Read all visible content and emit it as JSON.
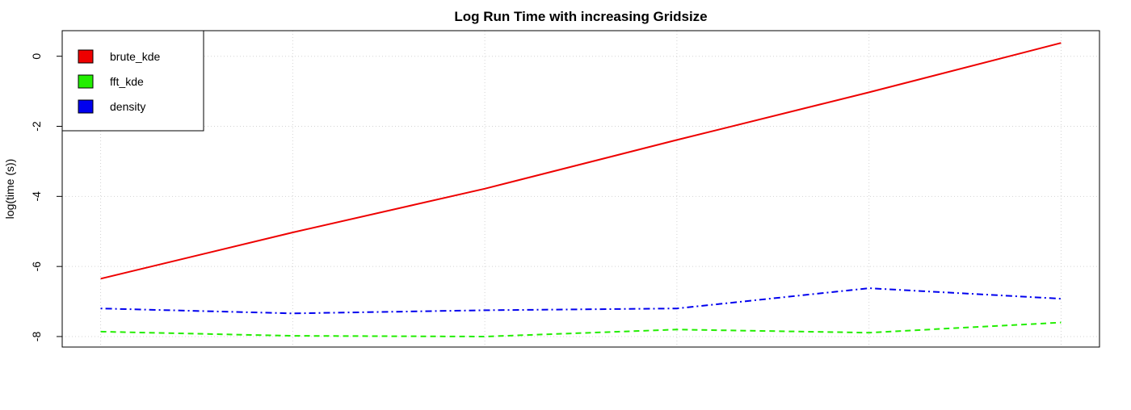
{
  "chart_data": {
    "type": "line",
    "title": "Log Run Time with increasing Gridsize",
    "xlabel": "",
    "ylabel": "log(time (s))",
    "x": [
      1,
      2,
      3,
      4,
      5,
      6
    ],
    "xlim": [
      0.8,
      6.2
    ],
    "ylim": [
      -8.3,
      0.73
    ],
    "yticks": [
      -8,
      -6,
      -4,
      -2,
      0
    ],
    "grid": true,
    "legend_position": "top-left",
    "series": [
      {
        "name": "brute_kde",
        "color": "#ee0000",
        "line_style": "solid",
        "values": [
          -6.35,
          -5.03,
          -3.78,
          -2.39,
          -1.03,
          0.38
        ]
      },
      {
        "name": "fft_kde",
        "color": "#22ee00",
        "line_style": "dashed",
        "values": [
          -7.86,
          -7.98,
          -8.0,
          -7.8,
          -7.89,
          -7.6
        ]
      },
      {
        "name": "density",
        "color": "#0000ee",
        "line_style": "dotdash",
        "values": [
          -7.2,
          -7.34,
          -7.25,
          -7.2,
          -6.62,
          -6.92
        ]
      }
    ]
  }
}
